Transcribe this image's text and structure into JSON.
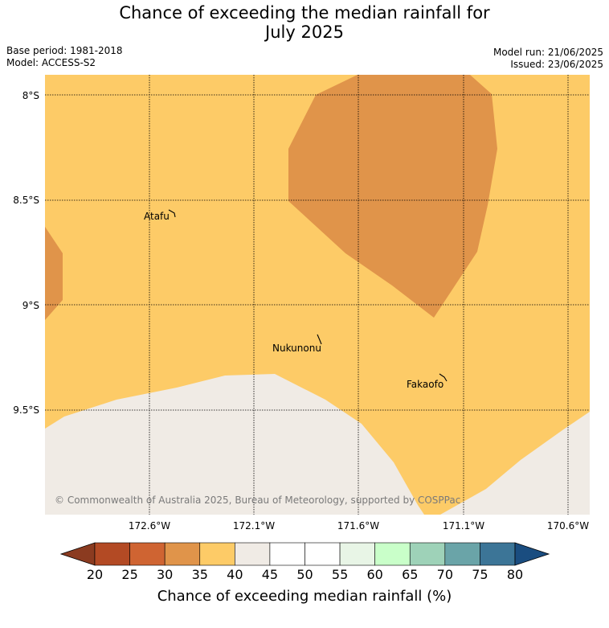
{
  "title_line1": "Chance of exceeding the median rainfall for",
  "title_line2": "July 2025",
  "base_period": "Base period: 1981-2018",
  "model": "Model: ACCESS-S2",
  "model_run": "Model run: 21/06/2025",
  "issued": "Issued: 23/06/2025",
  "copyright": "© Commonwealth of Australia 2025, Bureau of Meteorology, supported by COSPPac",
  "lat_labels": [
    "8°S",
    "8.5°S",
    "9°S",
    "9.5°S"
  ],
  "lon_labels": [
    "172.6°W",
    "172.1°W",
    "171.6°W",
    "171.1°W",
    "170.6°W"
  ],
  "places": {
    "atafu": "Atafu",
    "nukunonu": "Nukunonu",
    "fakaofo": "Fakaofo"
  },
  "colorbar": {
    "ticks": [
      "20",
      "25",
      "30",
      "35",
      "40",
      "45",
      "50",
      "55",
      "60",
      "65",
      "70",
      "75",
      "80"
    ],
    "colors": [
      "#b34a24",
      "#cf6432",
      "#e0944a",
      "#fdcb67",
      "#f0ebe5",
      "#ffffff",
      "#ffffff",
      "#e8f5e6",
      "#c9ffc9",
      "#9ed2b8",
      "#6aa4a8",
      "#3c7597"
    ],
    "under_color": "#8b3b20",
    "over_color": "#1a4d80",
    "title": "Chance of exceeding median rainfall (%)"
  },
  "regions": {
    "band_35_40_color": "#fdcb67",
    "band_30_35_color": "#e0944a",
    "band_40_45_color": "#f0ebe5"
  }
}
